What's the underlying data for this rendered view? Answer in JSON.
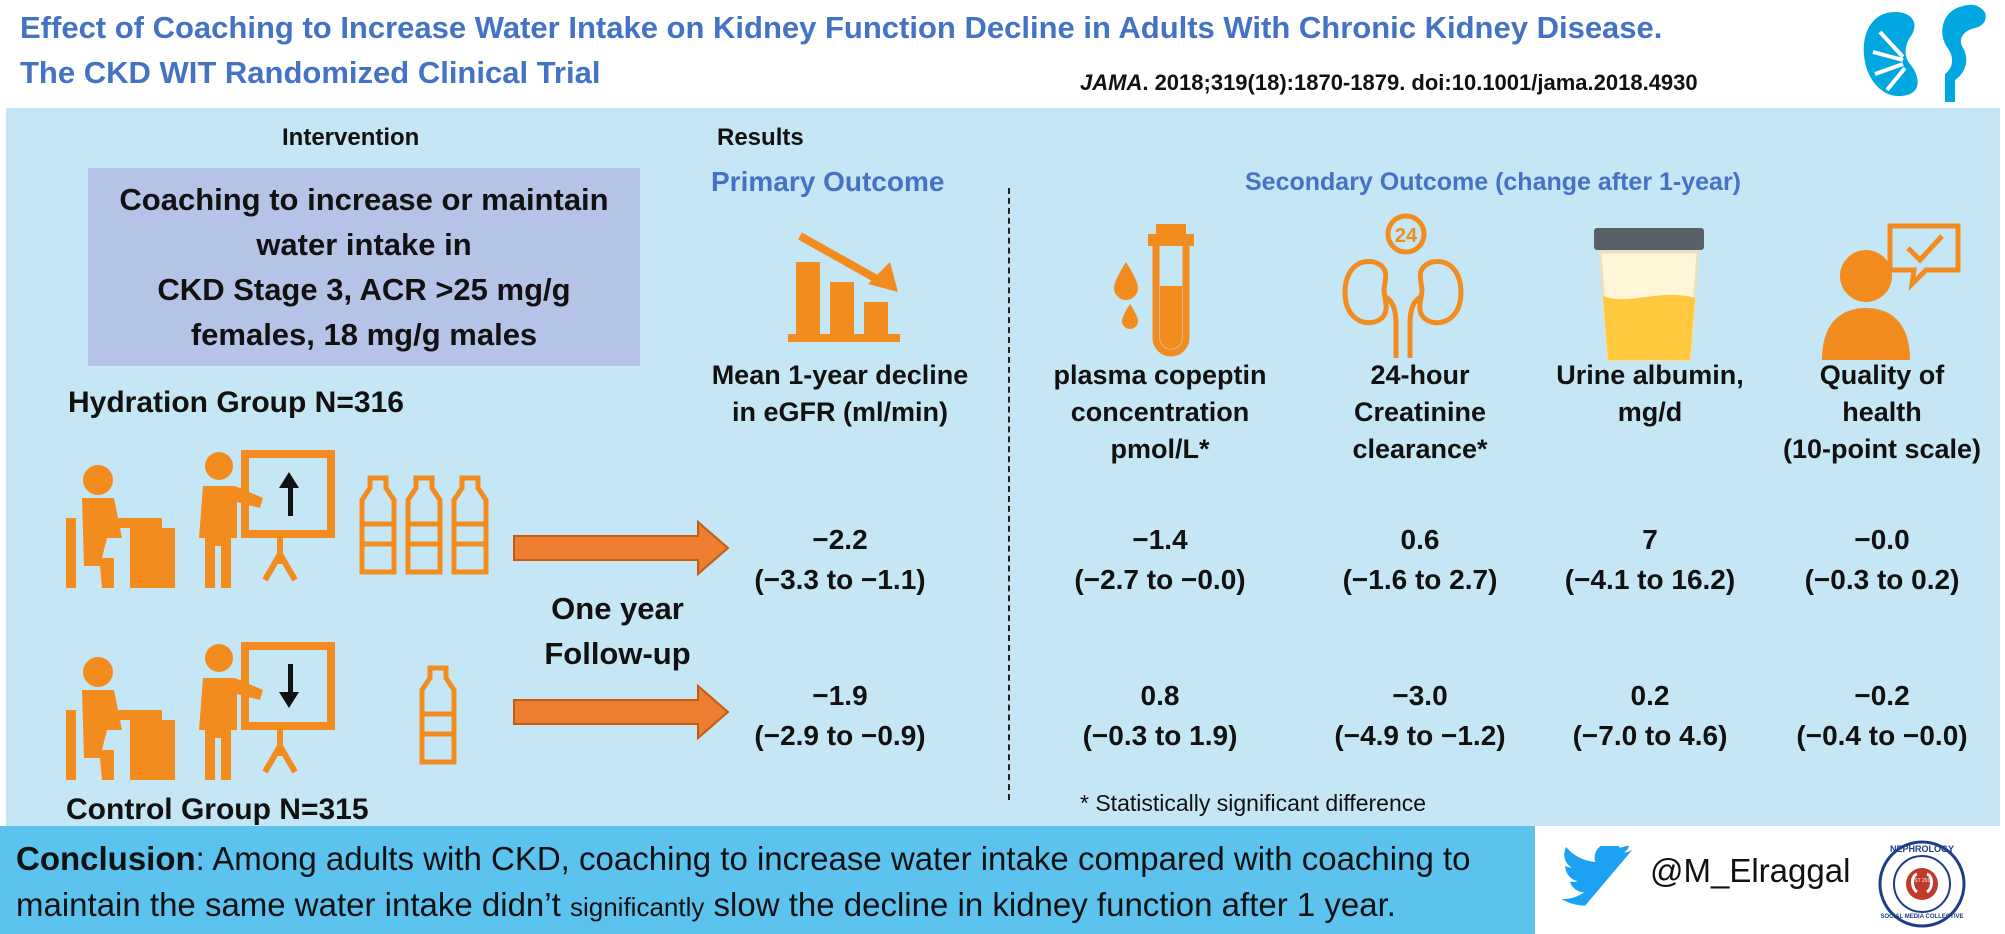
{
  "title": {
    "line1": "Effect of Coaching to Increase Water Intake on Kidney Function Decline in Adults With Chronic Kidney Disease.",
    "line2": "The CKD WIT Randomized Clinical Trial"
  },
  "citation": {
    "journal": "JAMA",
    "ref": ". 2018;319(18):1870-1879. doi:10.1001/jama.2018.4930"
  },
  "intervention": {
    "header": "Intervention",
    "box_text": "Coaching to increase or maintain\nwater intake in\nCKD Stage 3, ACR >25 mg/g\nfemales, 18 mg/g males",
    "hydration_group": "Hydration Group N=316",
    "control_group": "Control Group N=315",
    "followup": "One year\nFollow-up"
  },
  "results": {
    "header": "Results",
    "primary_header": "Primary Outcome",
    "secondary_header": "Secondary Outcome  (change after 1-year)",
    "outcomes": [
      {
        "label": "Mean 1-year decline\nin eGFR (ml/min)",
        "hydration": "−2.2",
        "hydration_ci": "(−3.3 to −1.1)",
        "control": "−1.9",
        "control_ci": "(−2.9 to −0.9)"
      },
      {
        "label": "plasma copeptin\nconcentration\npmol/L*",
        "hydration": "−1.4",
        "hydration_ci": "(−2.7 to −0.0)",
        "control": "0.8",
        "control_ci": "(−0.3 to 1.9)"
      },
      {
        "label": "24-hour\nCreatinine\nclearance*",
        "hydration": "0.6",
        "hydration_ci": "(−1.6 to 2.7)",
        "control": "−3.0",
        "control_ci": "(−4.9 to −1.2)"
      },
      {
        "label": "Urine albumin,\nmg/d",
        "hydration": "7",
        "hydration_ci": "(−4.1 to 16.2)",
        "control": "0.2",
        "control_ci": "(−7.0 to 4.6)"
      },
      {
        "label": "Quality of\nhealth\n(10-point scale)",
        "hydration": "−0.0",
        "hydration_ci": "(−0.3 to 0.2)",
        "control": "−0.2",
        "control_ci": "(−0.4 to −0.0)"
      }
    ],
    "footnote": "* Statistically significant difference"
  },
  "conclusion": {
    "lead": "Conclusion",
    "text1": ": Among adults with CKD, coaching to increase water intake compared with coaching to maintain the same water intake didn’t ",
    "small": "significantly",
    "text2": " slow the decline in kidney function after 1 year."
  },
  "social": {
    "handle": "@M_Elraggal",
    "logo_text": "NEPHROLOGY",
    "logo_bottom": "SOCIAL MEDIA COLLECTIVE",
    "logo_est": "EST 2015",
    "icon": "twitter-bird-icon"
  },
  "colors": {
    "orange": "#f28c1e",
    "title_blue": "#4472c4",
    "panel_bg": "#c5e6f5",
    "box_bg": "#b4c3e6",
    "conclusion_bg": "#5bc3ee",
    "twitter_blue": "#1da1f2"
  }
}
